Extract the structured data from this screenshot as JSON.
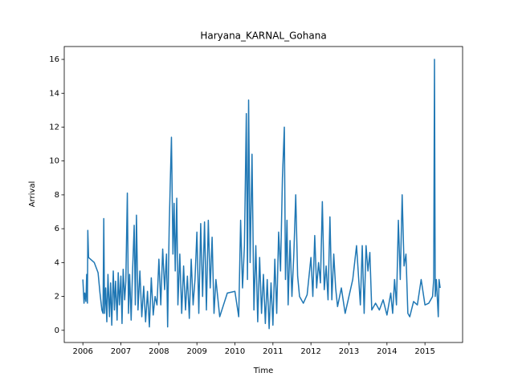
{
  "chart_data": {
    "type": "line",
    "title": "Haryana_KARNAL_Gohana",
    "x_label": "Time",
    "y_label": "Arrival",
    "color": "#1f77b4",
    "xlim": [
      2005.51,
      2015.99
    ],
    "ylim": [
      -0.72,
      16.76
    ],
    "xticks": [
      2006,
      2007,
      2008,
      2009,
      2010,
      2011,
      2012,
      2013,
      2014,
      2015
    ],
    "yticks": [
      0,
      2,
      4,
      6,
      8,
      10,
      12,
      14,
      16
    ],
    "x": [
      2006.0,
      2006.03,
      2006.05,
      2006.08,
      2006.1,
      2006.12,
      2006.13,
      2006.15,
      2006.3,
      2006.4,
      2006.45,
      2006.5,
      2006.53,
      2006.55,
      2006.57,
      2006.6,
      2006.63,
      2006.66,
      2006.7,
      2006.73,
      2006.76,
      2006.8,
      2006.83,
      2006.86,
      2006.9,
      2006.93,
      2006.96,
      2007.0,
      2007.03,
      2007.06,
      2007.1,
      2007.13,
      2007.17,
      2007.2,
      2007.23,
      2007.27,
      2007.3,
      2007.35,
      2007.38,
      2007.41,
      2007.45,
      2007.5,
      2007.55,
      2007.6,
      2007.65,
      2007.7,
      2007.75,
      2007.8,
      2007.85,
      2007.9,
      2007.95,
      2008.0,
      2008.05,
      2008.1,
      2008.15,
      2008.2,
      2008.23,
      2008.27,
      2008.3,
      2008.33,
      2008.37,
      2008.4,
      2008.43,
      2008.47,
      2008.5,
      2008.55,
      2008.6,
      2008.65,
      2008.7,
      2008.75,
      2008.8,
      2008.85,
      2008.9,
      2008.95,
      2009.0,
      2009.05,
      2009.1,
      2009.15,
      2009.2,
      2009.25,
      2009.3,
      2009.35,
      2009.4,
      2009.45,
      2009.5,
      2009.6,
      2009.8,
      2010.0,
      2010.1,
      2010.15,
      2010.2,
      2010.25,
      2010.3,
      2010.33,
      2010.36,
      2010.4,
      2010.45,
      2010.5,
      2010.55,
      2010.6,
      2010.65,
      2010.7,
      2010.75,
      2010.8,
      2010.85,
      2010.9,
      2010.95,
      2011.0,
      2011.05,
      2011.1,
      2011.15,
      2011.2,
      2011.25,
      2011.3,
      2011.33,
      2011.37,
      2011.4,
      2011.45,
      2011.5,
      2011.55,
      2011.6,
      2011.65,
      2011.7,
      2011.8,
      2011.9,
      2012.0,
      2012.05,
      2012.1,
      2012.15,
      2012.2,
      2012.25,
      2012.3,
      2012.35,
      2012.4,
      2012.45,
      2012.5,
      2012.55,
      2012.6,
      2012.65,
      2012.7,
      2012.8,
      2012.9,
      2013.0,
      2013.1,
      2013.2,
      2013.3,
      2013.35,
      2013.4,
      2013.45,
      2013.5,
      2013.55,
      2013.6,
      2013.7,
      2013.8,
      2013.9,
      2014.0,
      2014.1,
      2014.15,
      2014.2,
      2014.25,
      2014.3,
      2014.35,
      2014.4,
      2014.45,
      2014.5,
      2014.55,
      2014.6,
      2014.7,
      2014.8,
      2014.9,
      2015.0,
      2015.1,
      2015.2,
      2015.23,
      2015.25,
      2015.27,
      2015.3,
      2015.35,
      2015.37,
      2015.4
    ],
    "values": [
      3.0,
      1.6,
      2.2,
      1.7,
      3.3,
      1.6,
      5.9,
      4.3,
      4.0,
      3.4,
      2.2,
      1.2,
      1.0,
      6.6,
      1.0,
      2.5,
      0.5,
      3.3,
      0.8,
      2.8,
      0.3,
      3.5,
      1.2,
      2.9,
      0.6,
      3.4,
      1.5,
      3.2,
      0.4,
      3.6,
      1.8,
      2.9,
      8.1,
      1.0,
      3.3,
      0.6,
      3.0,
      6.2,
      1.5,
      6.8,
      1.2,
      3.5,
      0.8,
      2.6,
      0.5,
      2.3,
      0.2,
      3.1,
      0.9,
      2.0,
      1.5,
      4.2,
      1.5,
      4.8,
      2.4,
      4.5,
      0.2,
      6.0,
      8.8,
      11.4,
      4.5,
      7.5,
      3.5,
      7.8,
      1.5,
      4.5,
      1.0,
      3.8,
      1.2,
      3.2,
      0.7,
      4.2,
      1.5,
      3.0,
      5.8,
      1.0,
      6.3,
      2.0,
      6.4,
      1.2,
      6.5,
      2.5,
      5.5,
      1.0,
      3.0,
      0.8,
      2.2,
      2.3,
      0.8,
      6.5,
      2.5,
      5.0,
      12.8,
      3.0,
      13.6,
      4.0,
      10.4,
      1.2,
      5.0,
      0.5,
      4.3,
      1.0,
      3.3,
      0.4,
      3.0,
      0.1,
      2.8,
      0.3,
      4.2,
      1.0,
      5.8,
      3.5,
      9.0,
      12.0,
      3.0,
      6.5,
      1.5,
      5.3,
      2.0,
      4.5,
      8.0,
      3.2,
      2.0,
      1.6,
      2.1,
      4.3,
      2.0,
      5.6,
      2.5,
      4.0,
      2.8,
      7.6,
      2.4,
      3.8,
      1.8,
      6.7,
      1.8,
      4.5,
      2.5,
      1.4,
      2.5,
      1.0,
      2.0,
      3.0,
      5.0,
      1.5,
      5.0,
      1.0,
      5.0,
      3.5,
      4.6,
      1.2,
      1.6,
      1.2,
      1.8,
      0.9,
      2.2,
      1.0,
      3.0,
      1.5,
      6.5,
      3.0,
      8.0,
      3.8,
      4.5,
      1.0,
      0.8,
      1.7,
      1.5,
      3.0,
      1.5,
      1.6,
      2.0,
      3.0,
      16.0,
      2.0,
      3.0,
      0.8,
      3.0,
      2.5
    ]
  }
}
